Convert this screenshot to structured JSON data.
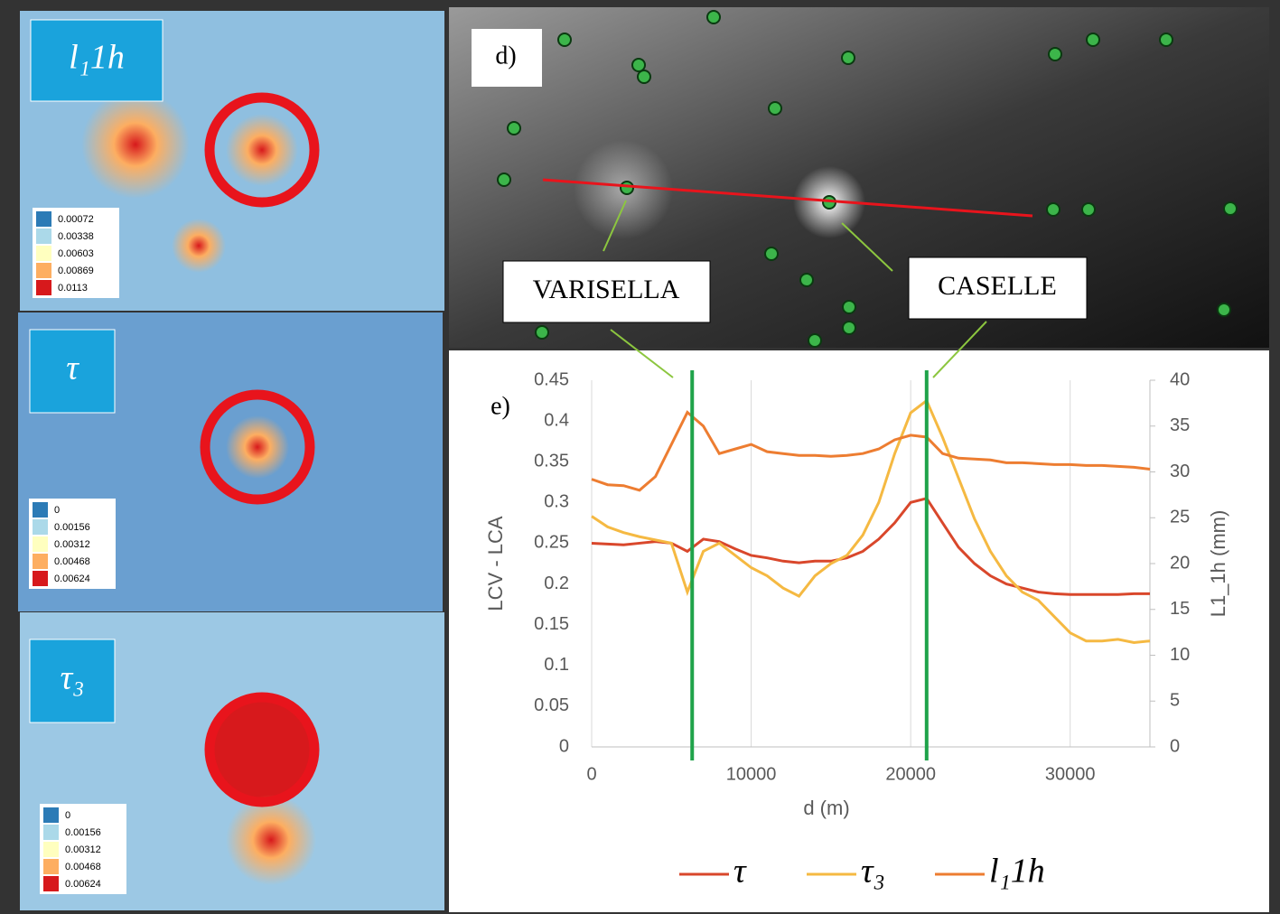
{
  "maps": [
    {
      "label": "l₁1h",
      "legend": [
        0.00072,
        0.00338,
        0.00603,
        0.00869,
        0.0113
      ]
    },
    {
      "label": "τ",
      "legend": [
        0,
        0.00156,
        0.00312,
        0.00468,
        0.00624
      ]
    },
    {
      "label": "τ₃",
      "legend": [
        0,
        0.00156,
        0.00312,
        0.00468,
        0.00624
      ]
    }
  ],
  "legend_colors": [
    "#2c7bb6",
    "#abd9e9",
    "#ffffbf",
    "#fdae61",
    "#d7191c"
  ],
  "station_map": {
    "label": "d)",
    "stations": [
      "VARISELLA",
      "CASELLE"
    ]
  },
  "chart_data": {
    "type": "line",
    "label": "e)",
    "xlabel": "d (m)",
    "ylabel": "LCV - LCA",
    "y2label": "L1_1h (mm)",
    "xlim": [
      0,
      35000
    ],
    "xticks": [
      0,
      10000,
      20000,
      30000
    ],
    "ylim": [
      0,
      0.45
    ],
    "yticks": [
      0,
      0.05,
      0.1,
      0.15,
      0.2,
      0.25,
      0.3,
      0.35,
      0.4,
      0.45
    ],
    "y2lim": [
      0,
      40
    ],
    "y2ticks": [
      0,
      5,
      10,
      15,
      20,
      25,
      30,
      35,
      40
    ],
    "grid": true,
    "vlines": [
      6300,
      21000
    ],
    "vline_color": "#1fa34a",
    "x": [
      0,
      1000,
      2000,
      3000,
      4000,
      5000,
      6000,
      7000,
      8000,
      9000,
      10000,
      11000,
      12000,
      13000,
      14000,
      15000,
      16000,
      17000,
      18000,
      19000,
      20000,
      21000,
      22000,
      23000,
      24000,
      25000,
      26000,
      27000,
      28000,
      29000,
      30000,
      31000,
      32000,
      33000,
      34000,
      35000
    ],
    "series": [
      {
        "name": "τ",
        "color": "#d9472b",
        "values": [
          0.25,
          0.249,
          0.248,
          0.25,
          0.252,
          0.25,
          0.24,
          0.255,
          0.252,
          0.243,
          0.235,
          0.232,
          0.228,
          0.226,
          0.228,
          0.228,
          0.232,
          0.24,
          0.255,
          0.275,
          0.3,
          0.305,
          0.275,
          0.245,
          0.225,
          0.21,
          0.2,
          0.195,
          0.19,
          0.188,
          0.187,
          0.187,
          0.187,
          0.187,
          0.188,
          0.188
        ]
      },
      {
        "name": "τ₃",
        "color": "#f5b942",
        "values": [
          0.283,
          0.27,
          0.263,
          0.258,
          0.254,
          0.25,
          0.19,
          0.24,
          0.25,
          0.235,
          0.22,
          0.21,
          0.195,
          0.185,
          0.21,
          0.225,
          0.235,
          0.26,
          0.3,
          0.36,
          0.41,
          0.425,
          0.38,
          0.33,
          0.28,
          0.24,
          0.21,
          0.19,
          0.18,
          0.16,
          0.14,
          0.13,
          0.13,
          0.132,
          0.128,
          0.13
        ]
      },
      {
        "name": "l₁1h",
        "color": "#ed7d31",
        "axis": "y2",
        "values": [
          29.2,
          28.6,
          28.5,
          28,
          29.5,
          33,
          36.5,
          35,
          32,
          32.5,
          33,
          32.2,
          32,
          31.8,
          31.8,
          31.7,
          31.8,
          32,
          32.5,
          33.5,
          34,
          33.8,
          32,
          31.5,
          31.4,
          31.3,
          31,
          31,
          30.9,
          30.8,
          30.8,
          30.7,
          30.7,
          30.6,
          30.5,
          30.3
        ]
      }
    ]
  }
}
